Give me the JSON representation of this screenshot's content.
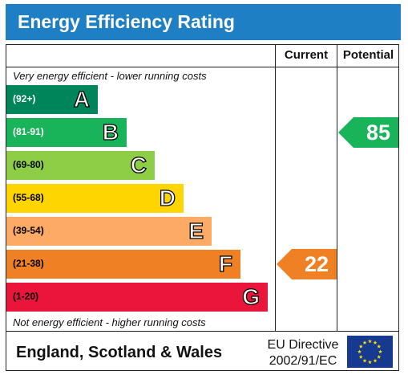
{
  "title": "Energy Efficiency Rating",
  "columns": {
    "current": "Current",
    "potential": "Potential"
  },
  "top_note": "Very energy efficient - lower running costs",
  "bottom_note": "Not energy efficient - higher running costs",
  "bands": [
    {
      "range": "(92+)",
      "letter": "A",
      "color": "#00855a",
      "range_color": "#ffffff"
    },
    {
      "range": "(81-91)",
      "letter": "B",
      "color": "#19b459",
      "range_color": "#ffffff"
    },
    {
      "range": "(69-80)",
      "letter": "C",
      "color": "#8dce46",
      "range_color": "#000000"
    },
    {
      "range": "(55-68)",
      "letter": "D",
      "color": "#ffd500",
      "range_color": "#000000"
    },
    {
      "range": "(39-54)",
      "letter": "E",
      "color": "#fcaa65",
      "range_color": "#000000"
    },
    {
      "range": "(21-38)",
      "letter": "F",
      "color": "#ef8023",
      "range_color": "#000000"
    },
    {
      "range": "(1-20)",
      "letter": "G",
      "color": "#e9153b",
      "range_color": "#000000"
    }
  ],
  "current": {
    "value": "22",
    "band": "F",
    "color": "#ef8023"
  },
  "potential": {
    "value": "85",
    "band": "B",
    "color": "#19b459"
  },
  "footer": {
    "region": "England, Scotland & Wales",
    "directive_line1": "EU Directive",
    "directive_line2": "2002/91/EC",
    "flag_icon": "eu-flag-icon"
  }
}
